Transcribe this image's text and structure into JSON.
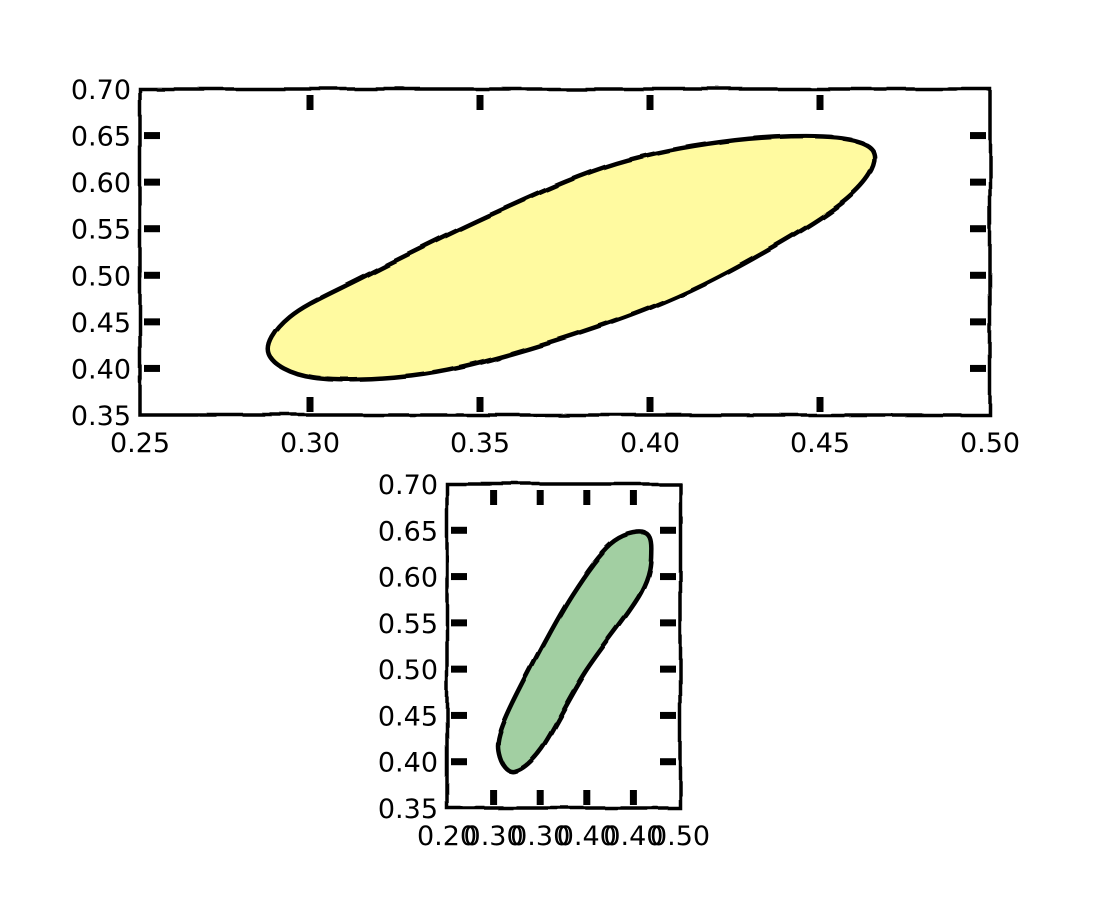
{
  "chart_data": [
    {
      "type": "area",
      "title": "",
      "xlabel": "",
      "ylabel": "",
      "xlim": [
        0.25,
        0.5
      ],
      "ylim": [
        0.35,
        0.7
      ],
      "xticks": [
        "0.25",
        "0.30",
        "0.35",
        "0.40",
        "0.45",
        "0.50"
      ],
      "yticks": [
        "0.35",
        "0.40",
        "0.45",
        "0.50",
        "0.55",
        "0.60",
        "0.65",
        "0.70"
      ],
      "fill_color": "#fffaa0",
      "style": "xkcd",
      "shape": "ellipse",
      "outline": [
        [
          0.301,
          0.39
        ],
        [
          0.33,
          0.392
        ],
        [
          0.36,
          0.416
        ],
        [
          0.4,
          0.465
        ],
        [
          0.43,
          0.518
        ],
        [
          0.458,
          0.583
        ],
        [
          0.466,
          0.629
        ],
        [
          0.455,
          0.648
        ],
        [
          0.425,
          0.645
        ],
        [
          0.39,
          0.62
        ],
        [
          0.355,
          0.568
        ],
        [
          0.315,
          0.497
        ],
        [
          0.294,
          0.455
        ],
        [
          0.288,
          0.415
        ]
      ]
    },
    {
      "type": "area",
      "title": "",
      "xlabel": "",
      "ylabel": "",
      "xlim": [
        0.2,
        0.5
      ],
      "ylim": [
        0.35,
        0.7
      ],
      "xticks": [
        "0.20",
        "0.30",
        "0.30",
        "0.40",
        "0.40",
        "0.50"
      ],
      "yticks": [
        "0.35",
        "0.40",
        "0.45",
        "0.50",
        "0.55",
        "0.60",
        "0.65",
        "0.70"
      ],
      "fill_color": "#a2cfa2",
      "style": "xkcd",
      "shape": "ellipse",
      "outline": [
        [
          0.286,
          0.39
        ],
        [
          0.321,
          0.415
        ],
        [
          0.378,
          0.497
        ],
        [
          0.45,
          0.583
        ],
        [
          0.463,
          0.629
        ],
        [
          0.452,
          0.648
        ],
        [
          0.41,
          0.635
        ],
        [
          0.36,
          0.58
        ],
        [
          0.305,
          0.497
        ],
        [
          0.27,
          0.435
        ],
        [
          0.268,
          0.405
        ]
      ]
    }
  ]
}
